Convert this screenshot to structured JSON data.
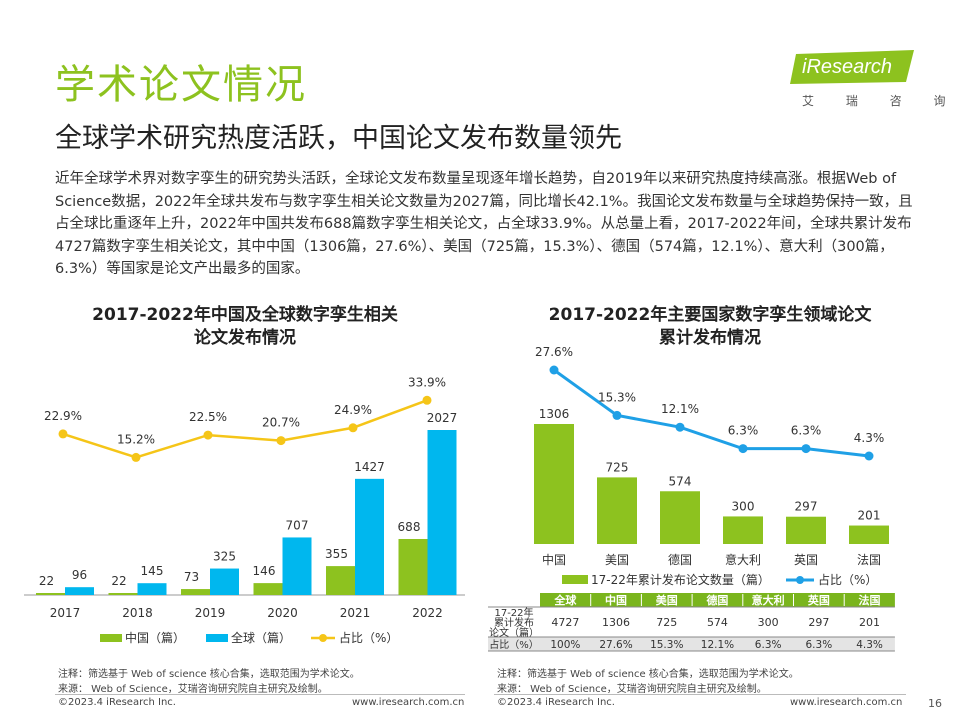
{
  "page": {
    "section_title": "学术论文情况",
    "headline": "全球学术研究热度活跃，中国论文发布数量领先",
    "body_text": "近年全球学术界对数字孪生的研究势头活跃，全球论文发布数量呈现逐年增长趋势，自2019年以来研究热度持续高涨。根据Web of Science数据，2022年全球共发布与数字孪生相关论文数量为2027篇，同比增长42.1%。我国论文发布数量与全球趋势保持一致，且占全球比重逐年上升，2022年中国共发布688篇数字孪生相关论文，占全球33.9%。从总量上看，2017-2022年间，全球共累计发布4727篇数字孪生相关论文，其中中国（1306篇，27.6%）、美国（725篇，15.3%）、德国（574篇，12.1%）、意大利（300篇，6.3%）等国家是论文产出最多的国家。",
    "page_number": "16"
  },
  "logo": {
    "wordmark": "iResearch",
    "subtitle": "艾 瑞 咨 询"
  },
  "left_chart": {
    "title_line1": "2017-2022年中国及全球数字孪生相关",
    "title_line2": "论文发布情况",
    "note": "注释：筛选基于 Web of science 核心合集，选取范围为学术论文。",
    "source": "来源： Web of Science，艾瑞咨询研究院自主研究及绘制。",
    "copyright": "©2023.4 iResearch Inc.",
    "website": "www.iresearch.com.cn"
  },
  "right_chart": {
    "title_line1": "2017-2022年主要国家数字孪生领域论文",
    "title_line2": "累计发布情况",
    "note": "注释：筛选基于 Web of science 核心合集，选取范围为学术论文。",
    "source": "来源： Web of Science，艾瑞咨询研究院自主研究及绘制。",
    "copyright": "©2023.4 iResearch Inc.",
    "website": "www.iresearch.com.cn"
  },
  "colors": {
    "green": "#8dc21f",
    "cyan": "#00b7ee",
    "yellow": "#f5c518",
    "blue": "#1fa0e6",
    "header_green": "#7ab51d"
  },
  "chart_data": [
    {
      "type": "bar",
      "categories": [
        "2017",
        "2018",
        "2019",
        "2020",
        "2021",
        "2022"
      ],
      "series": [
        {
          "name": "中国（篇）",
          "values": [
            22,
            22,
            73,
            146,
            355,
            688
          ],
          "value_labels": [
            "22",
            "22",
            "73",
            "146",
            "355",
            "688"
          ]
        },
        {
          "name": "全球（篇）",
          "values": [
            96,
            145,
            325,
            707,
            1427,
            2027
          ],
          "value_labels": [
            "96",
            "145",
            "325",
            "707",
            "1427",
            "2027"
          ]
        },
        {
          "name": "占比（%）",
          "type": "line",
          "values": [
            22.9,
            15.2,
            22.5,
            20.7,
            24.9,
            33.9
          ],
          "value_labels": [
            "22.9%",
            "15.2%",
            "22.5%",
            "20.7%",
            "24.9%",
            "33.9%"
          ]
        }
      ],
      "legend": "bottom",
      "grid": false
    },
    {
      "type": "bar",
      "categories": [
        "中国",
        "美国",
        "德国",
        "意大利",
        "英国",
        "法国"
      ],
      "series": [
        {
          "name": "17-22年累计发布论文数量（篇）",
          "values": [
            1306,
            725,
            574,
            300,
            297,
            201
          ],
          "value_labels": [
            "1306",
            "725",
            "574",
            "300",
            "297",
            "201"
          ]
        },
        {
          "name": "占比（%）",
          "type": "line",
          "values": [
            27.6,
            15.3,
            12.1,
            6.3,
            6.3,
            4.3
          ],
          "value_labels": [
            "27.6%",
            "15.3%",
            "12.1%",
            "6.3%",
            "6.3%",
            "4.3%"
          ]
        }
      ],
      "legend": "bottom",
      "grid": false
    },
    {
      "type": "table",
      "columns": [
        "全球",
        "中国",
        "美国",
        "德国",
        "意大利",
        "英国",
        "法国"
      ],
      "rows": [
        {
          "label": "17-22年累计发布论文（篇）",
          "values": [
            "4727",
            "1306",
            "725",
            "574",
            "300",
            "297",
            "201"
          ]
        },
        {
          "label": "占比（%）",
          "values": [
            "100%",
            "27.6%",
            "15.3%",
            "12.1%",
            "6.3%",
            "6.3%",
            "4.3%"
          ]
        }
      ]
    }
  ]
}
